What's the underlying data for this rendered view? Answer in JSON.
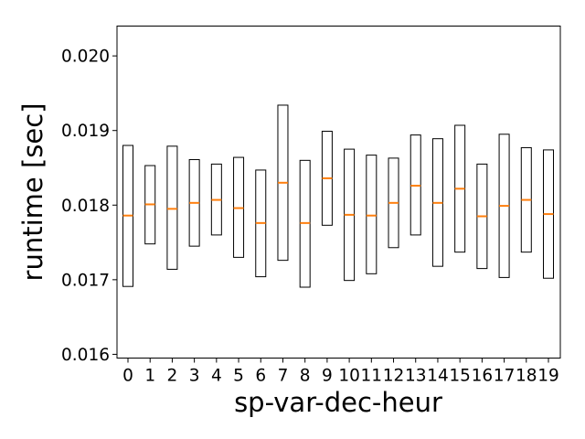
{
  "chart_data": {
    "type": "box",
    "title": "",
    "xlabel": "sp-var-dec-heur",
    "ylabel": "runtime [sec]",
    "categories": [
      "0",
      "1",
      "2",
      "3",
      "4",
      "5",
      "6",
      "7",
      "8",
      "9",
      "10",
      "11",
      "12",
      "13",
      "14",
      "15",
      "16",
      "17",
      "18",
      "19"
    ],
    "ylim": [
      0.01595,
      0.0204
    ],
    "yticks": [
      0.016,
      0.017,
      0.018,
      0.019,
      0.02
    ],
    "ytick_labels": [
      "0.016",
      "0.017",
      "0.018",
      "0.019",
      "0.020"
    ],
    "boxes": [
      {
        "q1": 0.01691,
        "median": 0.01786,
        "q3": 0.0188
      },
      {
        "q1": 0.01748,
        "median": 0.01801,
        "q3": 0.01853
      },
      {
        "q1": 0.01714,
        "median": 0.01795,
        "q3": 0.01879
      },
      {
        "q1": 0.01745,
        "median": 0.01803,
        "q3": 0.01861
      },
      {
        "q1": 0.0176,
        "median": 0.01807,
        "q3": 0.01855
      },
      {
        "q1": 0.0173,
        "median": 0.01796,
        "q3": 0.01864
      },
      {
        "q1": 0.01704,
        "median": 0.01776,
        "q3": 0.01847
      },
      {
        "q1": 0.01726,
        "median": 0.0183,
        "q3": 0.01934
      },
      {
        "q1": 0.0169,
        "median": 0.01776,
        "q3": 0.0186
      },
      {
        "q1": 0.01773,
        "median": 0.01836,
        "q3": 0.01899
      },
      {
        "q1": 0.01699,
        "median": 0.01787,
        "q3": 0.01875
      },
      {
        "q1": 0.01708,
        "median": 0.01786,
        "q3": 0.01867
      },
      {
        "q1": 0.01743,
        "median": 0.01803,
        "q3": 0.01863
      },
      {
        "q1": 0.0176,
        "median": 0.01826,
        "q3": 0.01894
      },
      {
        "q1": 0.01718,
        "median": 0.01803,
        "q3": 0.01889
      },
      {
        "q1": 0.01737,
        "median": 0.01822,
        "q3": 0.01907
      },
      {
        "q1": 0.01715,
        "median": 0.01785,
        "q3": 0.01855
      },
      {
        "q1": 0.01703,
        "median": 0.01799,
        "q3": 0.01895
      },
      {
        "q1": 0.01737,
        "median": 0.01807,
        "q3": 0.01877
      },
      {
        "q1": 0.01702,
        "median": 0.01788,
        "q3": 0.01874
      }
    ],
    "grid": false,
    "legend": "none",
    "colors": {
      "box_edge": "#000000",
      "median": "#ff7f0e",
      "axes": "#000000",
      "background": "#ffffff"
    }
  }
}
